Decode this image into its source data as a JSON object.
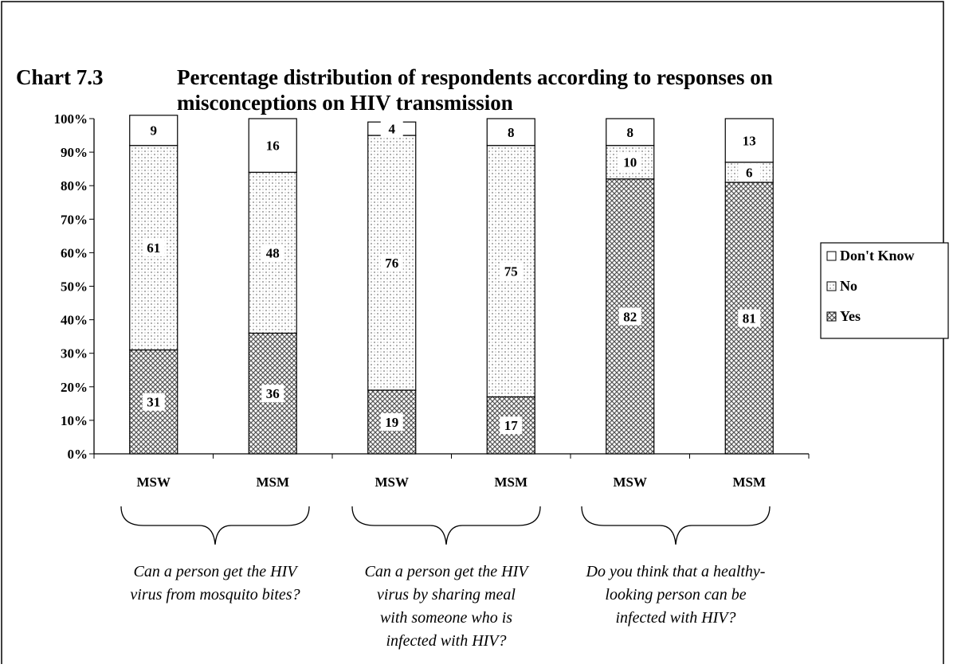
{
  "chart_data": {
    "type": "stacked_bar",
    "chart_label": "Chart 7.3",
    "title": [
      "Percentage distribution of respondents according to responses on",
      "misconceptions on HIV transmission"
    ],
    "categories": [
      "MSW",
      "MSM",
      "MSW",
      "MSM",
      "MSW",
      "MSM"
    ],
    "series": [
      {
        "name": "Yes",
        "color": "#555555",
        "values": [
          31,
          36,
          19,
          17,
          82,
          81
        ]
      },
      {
        "name": "No",
        "color": "#888888",
        "values": [
          61,
          48,
          76,
          75,
          10,
          6
        ]
      },
      {
        "name": "Don't Know",
        "color": "#ffffff",
        "values": [
          9,
          16,
          4,
          8,
          8,
          13
        ]
      }
    ],
    "groups": [
      [
        "Can a person get the HIV",
        "virus from mosquito bites?"
      ],
      [
        "Can a person get the HIV",
        "virus by sharing meal",
        "with someone who is",
        "infected with HIV?"
      ],
      [
        "Do you think that a healthy-",
        "looking person can be",
        "infected with HIV?"
      ]
    ],
    "ylim": [
      0,
      100
    ],
    "yticks": [
      {
        "value": 0,
        "label": "0%"
      },
      {
        "value": 10,
        "label": "10%"
      },
      {
        "value": 20,
        "label": "20%"
      },
      {
        "value": 30,
        "label": "30%"
      },
      {
        "value": 40,
        "label": "40%"
      },
      {
        "value": 50,
        "label": "50%"
      },
      {
        "value": 60,
        "label": "60%"
      },
      {
        "value": 70,
        "label": "70%"
      },
      {
        "value": 80,
        "label": "80%"
      },
      {
        "value": 90,
        "label": "90%"
      },
      {
        "value": 100,
        "label": "100%"
      }
    ],
    "legend": "right"
  }
}
